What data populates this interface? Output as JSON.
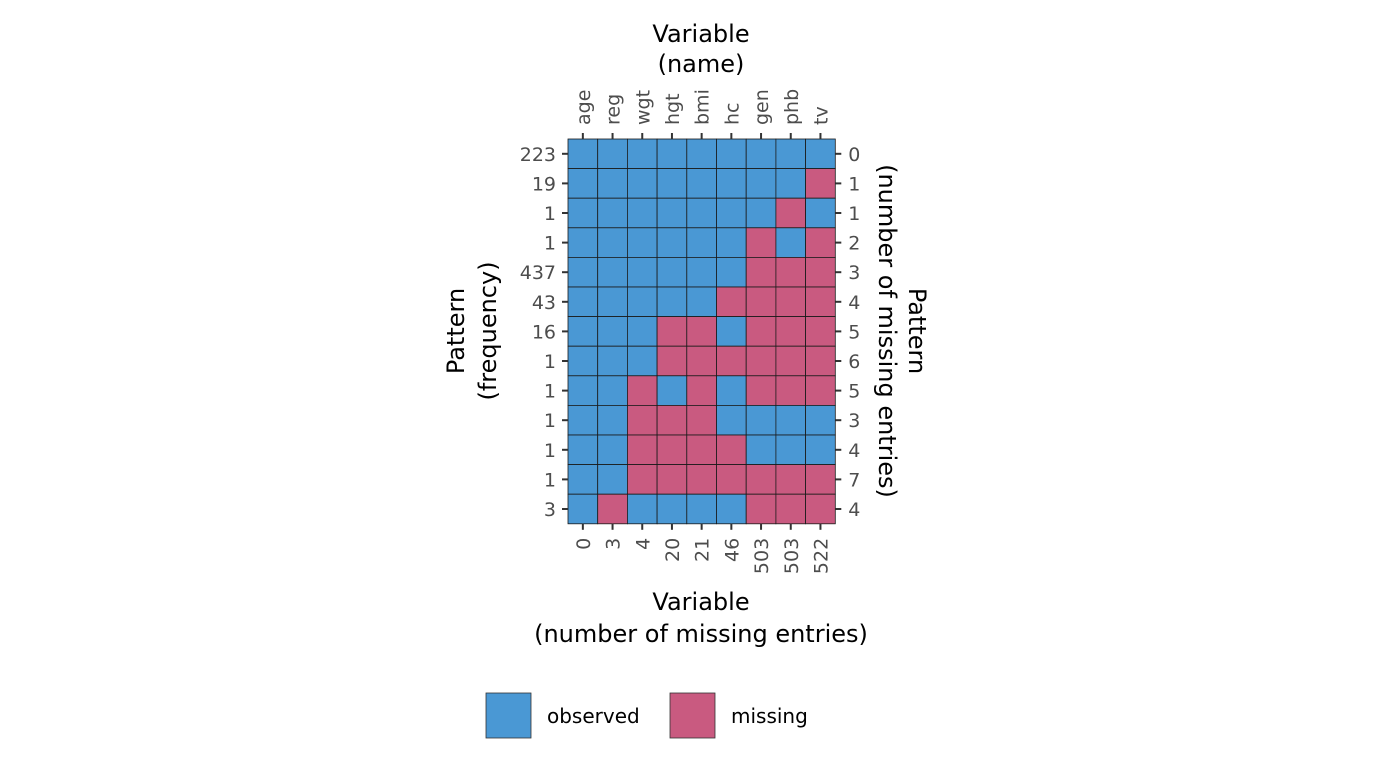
{
  "chart_data": {
    "type": "heatmap",
    "top_axis_title": [
      "Variable",
      "(name)"
    ],
    "bottom_axis_title": [
      "Variable",
      "(number of missing entries)"
    ],
    "left_axis_title": [
      "Pattern",
      "(frequency)"
    ],
    "right_axis_title": [
      "Pattern",
      "(number of missing entries)"
    ],
    "variables": [
      "age",
      "reg",
      "wgt",
      "hgt",
      "bmi",
      "hc",
      "gen",
      "phb",
      "tv"
    ],
    "variable_missing_counts": [
      "0",
      "3",
      "4",
      "20",
      "21",
      "46",
      "503",
      "503",
      "522"
    ],
    "pattern_frequencies": [
      "223",
      "19",
      "1",
      "1",
      "437",
      "43",
      "16",
      "1",
      "1",
      "1",
      "1",
      "1",
      "3"
    ],
    "pattern_missing_counts": [
      "0",
      "1",
      "1",
      "2",
      "3",
      "4",
      "5",
      "6",
      "5",
      "3",
      "4",
      "7",
      "4"
    ],
    "matrix_note": "1 = observed, 0 = missing",
    "matrix": [
      [
        1,
        1,
        1,
        1,
        1,
        1,
        1,
        1,
        1
      ],
      [
        1,
        1,
        1,
        1,
        1,
        1,
        1,
        1,
        0
      ],
      [
        1,
        1,
        1,
        1,
        1,
        1,
        1,
        0,
        1
      ],
      [
        1,
        1,
        1,
        1,
        1,
        1,
        0,
        1,
        0
      ],
      [
        1,
        1,
        1,
        1,
        1,
        1,
        0,
        0,
        0
      ],
      [
        1,
        1,
        1,
        1,
        1,
        0,
        0,
        0,
        0
      ],
      [
        1,
        1,
        1,
        0,
        0,
        1,
        0,
        0,
        0
      ],
      [
        1,
        1,
        1,
        0,
        0,
        0,
        0,
        0,
        0
      ],
      [
        1,
        1,
        0,
        1,
        0,
        1,
        0,
        0,
        0
      ],
      [
        1,
        1,
        0,
        0,
        0,
        1,
        1,
        1,
        1
      ],
      [
        1,
        1,
        0,
        0,
        0,
        0,
        1,
        1,
        1
      ],
      [
        1,
        1,
        0,
        0,
        0,
        0,
        0,
        0,
        0
      ],
      [
        1,
        0,
        1,
        1,
        1,
        1,
        0,
        0,
        0
      ]
    ],
    "legend": [
      {
        "label": "observed",
        "color": "#4a98d4",
        "value": 1
      },
      {
        "label": "missing",
        "color": "#c95a80",
        "value": 0
      }
    ],
    "legend_position": "bottom"
  }
}
